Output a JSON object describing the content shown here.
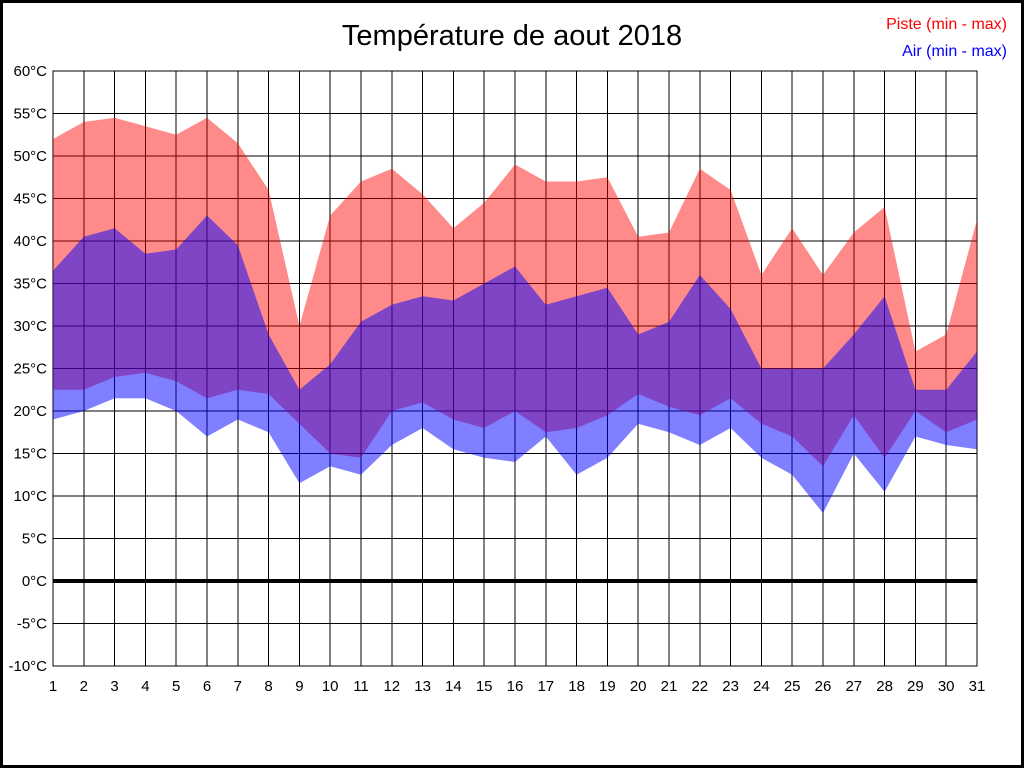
{
  "figure": {
    "title": "Température de aout 2018",
    "legend": [
      {
        "label": "Piste (min - max)",
        "color": "#ff0000"
      },
      {
        "label": "Air (min - max)",
        "color": "#0000ff"
      }
    ]
  },
  "chart_data": {
    "type": "area",
    "title": "Température de aout 2018",
    "units": "°C",
    "x": [
      1,
      2,
      3,
      4,
      5,
      6,
      7,
      8,
      9,
      10,
      11,
      12,
      13,
      14,
      15,
      16,
      17,
      18,
      19,
      20,
      21,
      22,
      23,
      24,
      25,
      26,
      27,
      28,
      29,
      30,
      31
    ],
    "ylim": [
      -10,
      60
    ],
    "y_tick_step": 5,
    "y_tick_labels": [
      "60°C",
      "55°C",
      "50°C",
      "45°C",
      "40°C",
      "35°C",
      "30°C",
      "25°C",
      "20°C",
      "15°C",
      "10°C",
      "5°C",
      "0°C",
      "-5°C",
      "-10°C"
    ],
    "grid": true,
    "zero_line": {
      "value": 0,
      "style": "thick-black"
    },
    "legend_position": "top-right",
    "series": [
      {
        "name": "Piste (min - max)",
        "type": "band",
        "color": "#ff0000",
        "fill_opacity": 0.46,
        "max": [
          52,
          54,
          54.5,
          53.5,
          52.5,
          54.5,
          51.5,
          46,
          30,
          43,
          47,
          48.5,
          45.5,
          41.5,
          44.5,
          49,
          47,
          47,
          47.5,
          40.5,
          41,
          48.5,
          46,
          36,
          41.5,
          36,
          41,
          44,
          27,
          29,
          42.5
        ],
        "min": [
          22.5,
          22.5,
          24,
          24.5,
          23.5,
          21.5,
          22.5,
          22,
          18.5,
          15,
          14.5,
          20,
          21,
          19,
          18,
          20,
          17.5,
          18,
          19.5,
          22,
          20.5,
          19.5,
          21.5,
          18.5,
          17,
          13.5,
          19.5,
          14.5,
          20,
          17.5,
          19
        ]
      },
      {
        "name": "Air (min - max)",
        "type": "band",
        "color": "#0000ff",
        "fill_opacity": 0.5,
        "max": [
          36.5,
          40.5,
          41.5,
          38.5,
          39,
          43,
          39.5,
          29,
          22.5,
          25.5,
          30.5,
          32.5,
          33.5,
          33,
          35,
          37,
          32.5,
          33.5,
          34.5,
          29,
          30.5,
          36,
          32,
          25,
          25,
          25,
          29,
          33.5,
          22.5,
          22.5,
          27
        ],
        "min": [
          19,
          20,
          21.5,
          21.5,
          20,
          17,
          19,
          17.5,
          11.5,
          13.5,
          12.5,
          16,
          18,
          15.5,
          14.5,
          14,
          17,
          12.5,
          14.5,
          18.5,
          17.5,
          16,
          18,
          14.5,
          12.5,
          8,
          15,
          10.5,
          17,
          16,
          15.5
        ]
      }
    ]
  }
}
